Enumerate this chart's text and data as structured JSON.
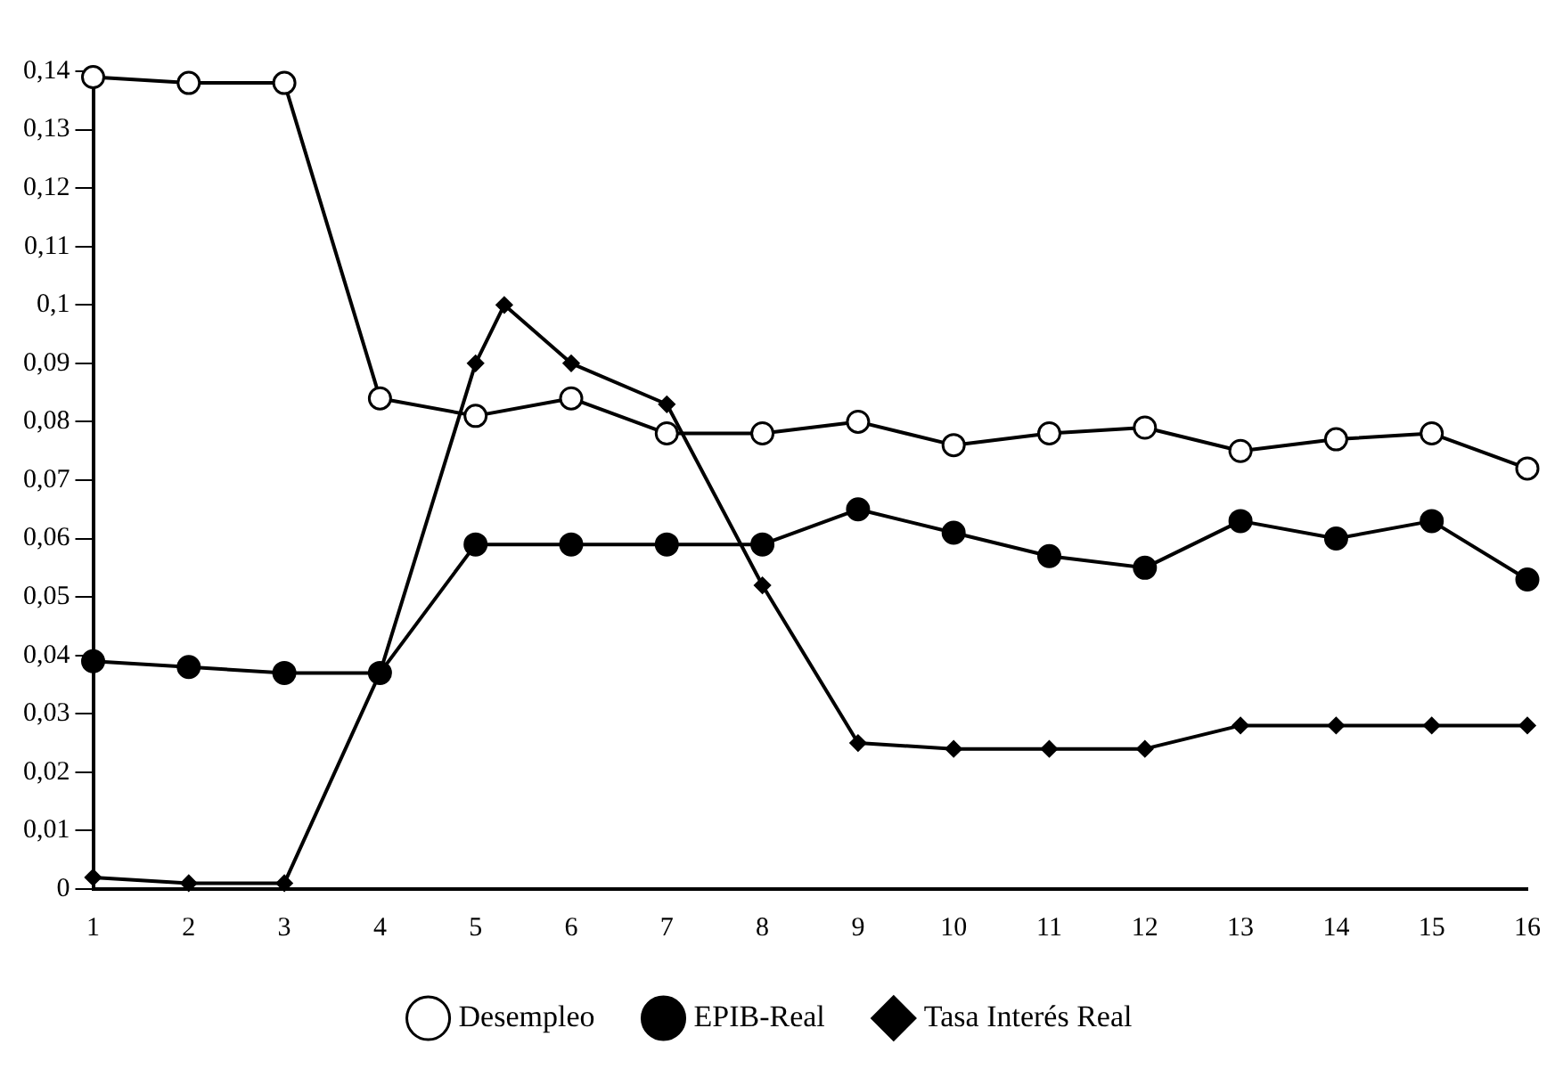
{
  "chart_data": {
    "type": "line",
    "legend": "bottom",
    "grid": false,
    "line_style": "solid",
    "xlim": [
      1,
      16
    ],
    "xticks": [
      1,
      2,
      3,
      4,
      5,
      6,
      7,
      8,
      9,
      10,
      11,
      12,
      13,
      14,
      15,
      16
    ],
    "ylim": [
      0,
      0.14
    ],
    "yticks": [
      {
        "value": 0,
        "label": "0"
      },
      {
        "value": 0.01,
        "label": "0,01"
      },
      {
        "value": 0.02,
        "label": "0,02"
      },
      {
        "value": 0.03,
        "label": "0,03"
      },
      {
        "value": 0.04,
        "label": "0,04"
      },
      {
        "value": 0.05,
        "label": "0,05"
      },
      {
        "value": 0.06,
        "label": "0,06"
      },
      {
        "value": 0.07,
        "label": "0,07"
      },
      {
        "value": 0.08,
        "label": "0,08"
      },
      {
        "value": 0.09,
        "label": "0,09"
      },
      {
        "value": 0.1,
        "label": "0,1"
      },
      {
        "value": 0.11,
        "label": "0,11"
      },
      {
        "value": 0.12,
        "label": "0,12"
      },
      {
        "value": 0.13,
        "label": "0,13"
      },
      {
        "value": 0.14,
        "label": "0,14"
      }
    ],
    "series": [
      {
        "name": "Desempleo",
        "color": "#000000",
        "marker": "circle",
        "x": [
          1,
          2,
          3,
          4,
          5,
          6,
          7,
          8,
          9,
          10,
          11,
          12,
          13,
          14,
          15,
          16
        ],
        "values": [
          0.139,
          0.138,
          0.138,
          0.084,
          0.081,
          0.084,
          0.078,
          0.078,
          0.08,
          0.076,
          0.078,
          0.079,
          0.075,
          0.077,
          0.078,
          0.072
        ]
      },
      {
        "name": "EPIB-Real",
        "color": "#000000",
        "marker": "circle",
        "x": [
          1,
          2,
          3,
          4,
          5,
          6,
          7,
          8,
          9,
          10,
          11,
          12,
          13,
          14,
          15,
          16
        ],
        "values": [
          0.039,
          0.038,
          0.037,
          0.037,
          0.059,
          0.059,
          0.059,
          0.059,
          0.065,
          0.061,
          0.057,
          0.055,
          0.063,
          0.06,
          0.063,
          0.053
        ]
      },
      {
        "name": "Tasa Interés Real",
        "color": "#000000",
        "marker": "diamond",
        "x": [
          1,
          2,
          3,
          4,
          5,
          5.3,
          6,
          7,
          8,
          9,
          10,
          11,
          12,
          13,
          14,
          15,
          16
        ],
        "values": [
          0.002,
          0.001,
          0.001,
          0.037,
          0.09,
          0.1,
          0.09,
          0.083,
          0.052,
          0.025,
          0.024,
          0.024,
          0.024,
          0.028,
          0.028,
          0.028,
          0.028
        ]
      }
    ]
  }
}
